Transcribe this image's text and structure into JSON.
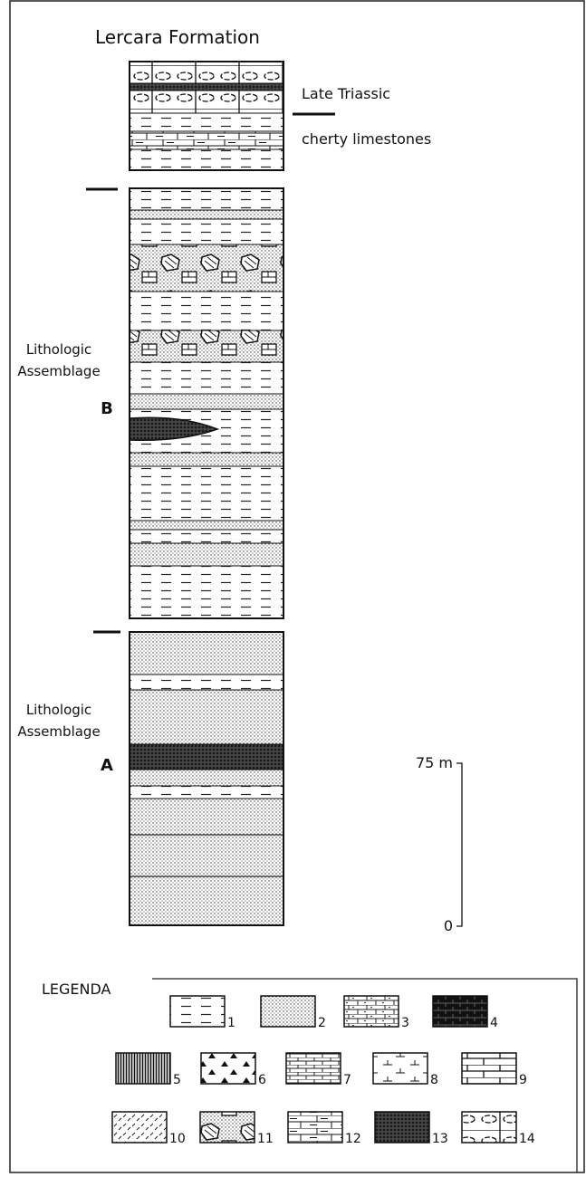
{
  "header": {
    "title": "Lercara Formation"
  },
  "labels": {
    "age": "Late Triassic",
    "unit": "cherty limestones"
  },
  "assemblages": [
    {
      "lines": [
        "Lithologic",
        "Assemblage"
      ],
      "letter": "B"
    },
    {
      "lines": [
        "Lithologic",
        "Assemblage"
      ],
      "letter": "A"
    }
  ],
  "scale": {
    "top": "75 m",
    "bottom": "0"
  },
  "legend": {
    "title": "LEGENDA",
    "items": [
      "1",
      "2",
      "3",
      "4",
      "5",
      "6",
      "7",
      "8",
      "9",
      "10",
      "11",
      "12",
      "13",
      "14"
    ]
  }
}
